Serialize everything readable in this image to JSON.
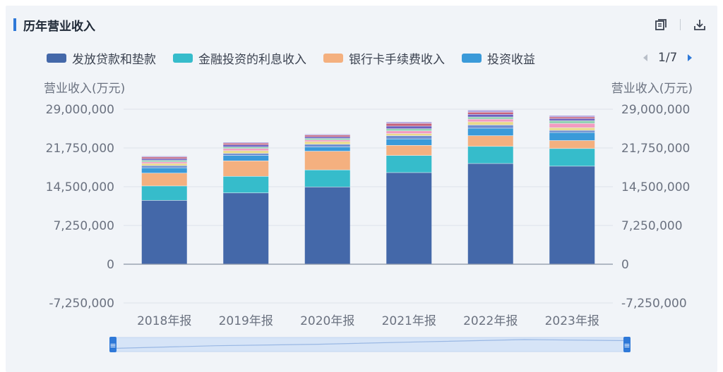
{
  "header": {
    "title": "历年营业收入",
    "icons": [
      "restore-icon",
      "download-icon"
    ]
  },
  "legend": {
    "items": [
      {
        "label": "发放贷款和垫款",
        "color": "#4468a9"
      },
      {
        "label": "金融投资的利息收入",
        "color": "#36bccb"
      },
      {
        "label": "银行卡手续费收入",
        "color": "#f4b07f"
      },
      {
        "label": "投资收益",
        "color": "#3a9ad9"
      }
    ],
    "page_indicator": "1/7"
  },
  "chart_data": {
    "type": "bar",
    "stacked": true,
    "categories": [
      "2018年报",
      "2019年报",
      "2020年报",
      "2021年报",
      "2022年报",
      "2023年报"
    ],
    "ylabel_left": "营业收入(万元)",
    "ylabel_right": "营业收入(万元)",
    "y_ticks": [
      "29,000,000",
      "21,750,000",
      "14,500,000",
      "7,250,000",
      "0",
      "-7,250,000"
    ],
    "ylim": [
      -7250000,
      29000000
    ],
    "grid": true,
    "legend_position": "top",
    "series": [
      {
        "name": "发放贷款和垫款",
        "color": "#4468a9",
        "values": [
          11900000,
          13300000,
          14400000,
          17100000,
          18800000,
          18300000
        ]
      },
      {
        "name": "金融投资的利息收入",
        "color": "#36bccb",
        "values": [
          2700000,
          3100000,
          3200000,
          3200000,
          3200000,
          3300000
        ]
      },
      {
        "name": "银行卡手续费收入",
        "color": "#f4b07f",
        "values": [
          2400000,
          2900000,
          3500000,
          1900000,
          2000000,
          1500000
        ]
      },
      {
        "name": "投资收益",
        "color": "#3a9ad9",
        "values": [
          1000000,
          1000000,
          800000,
          1200000,
          1400000,
          1500000
        ]
      },
      {
        "color": "#6f8fd0",
        "values": [
          400000,
          400000,
          500000,
          600000,
          600000,
          400000
        ]
      },
      {
        "color": "#e9d98a",
        "values": [
          400000,
          500000,
          500000,
          400000,
          600000,
          500000
        ]
      },
      {
        "color": "#f29bc0",
        "values": [
          300000,
          400000,
          300000,
          500000,
          500000,
          800000
        ]
      },
      {
        "color": "#8fd0b0",
        "values": [
          300000,
          300000,
          300000,
          400000,
          400000,
          500000
        ]
      },
      {
        "color": "#6b5fbf",
        "values": [
          300000,
          400000,
          300000,
          500000,
          500000,
          400000
        ]
      },
      {
        "color": "#c55f7a",
        "values": [
          300000,
          300000,
          300000,
          500000,
          400000,
          300000
        ]
      },
      {
        "color": "#b0a3e0",
        "values": [
          200000,
          200000,
          200000,
          300000,
          400000,
          300000
        ]
      }
    ]
  },
  "zoom": {
    "handle_glyph": "≡"
  }
}
